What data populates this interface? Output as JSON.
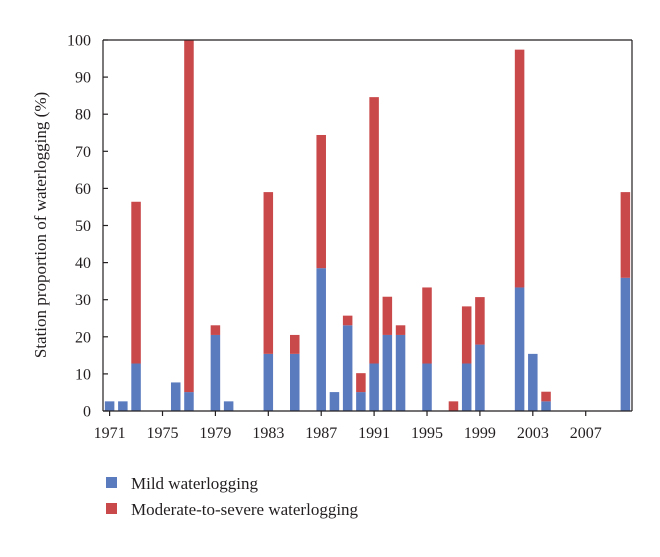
{
  "chart_data": {
    "type": "bar",
    "stacked": true,
    "ylabel": "Station proportion of waterlogging (%)",
    "xlabel": "",
    "ylim": [
      0,
      100
    ],
    "yticks": [
      "0",
      "10",
      "20",
      "30",
      "40",
      "50",
      "60",
      "70",
      "80",
      "90",
      "100"
    ],
    "xlim": [
      1970.5,
      2010.5
    ],
    "xticks": [
      "1971",
      "1975",
      "1979",
      "1983",
      "1987",
      "1991",
      "1995",
      "1999",
      "2003",
      "2007"
    ],
    "grid": false,
    "legend_position": "bottom-left",
    "x": [
      1971,
      1972,
      1973,
      1974,
      1975,
      1976,
      1977,
      1978,
      1979,
      1980,
      1981,
      1982,
      1983,
      1984,
      1985,
      1986,
      1987,
      1988,
      1989,
      1990,
      1991,
      1992,
      1993,
      1994,
      1995,
      1996,
      1997,
      1998,
      1999,
      2000,
      2001,
      2002,
      2003,
      2004,
      2005,
      2006,
      2007,
      2008,
      2009,
      2010
    ],
    "series": [
      {
        "name": "Mild waterlogging",
        "color": "#5b7bbf",
        "values": [
          2.6,
          2.6,
          12.8,
          0,
          0,
          7.7,
          5.1,
          0,
          20.5,
          2.6,
          0,
          0,
          15.4,
          0,
          15.4,
          0,
          38.5,
          5.1,
          23.1,
          5.1,
          12.8,
          20.5,
          20.5,
          0,
          12.8,
          0,
          0,
          12.8,
          17.9,
          0,
          0,
          33.3,
          15.4,
          2.6,
          0,
          0,
          0,
          0,
          0,
          35.9
        ]
      },
      {
        "name": "Moderate-to-severe waterlogging",
        "color": "#c9484a",
        "values": [
          0,
          0,
          43.6,
          0,
          0,
          0,
          94.9,
          0,
          2.6,
          0,
          0,
          0,
          43.6,
          0,
          5.1,
          0,
          35.9,
          0,
          2.6,
          5.1,
          71.8,
          10.3,
          2.6,
          0,
          20.5,
          0,
          2.6,
          15.4,
          12.8,
          0,
          0,
          64.1,
          0,
          2.6,
          0,
          0,
          0,
          0,
          0,
          23.1
        ]
      }
    ]
  }
}
